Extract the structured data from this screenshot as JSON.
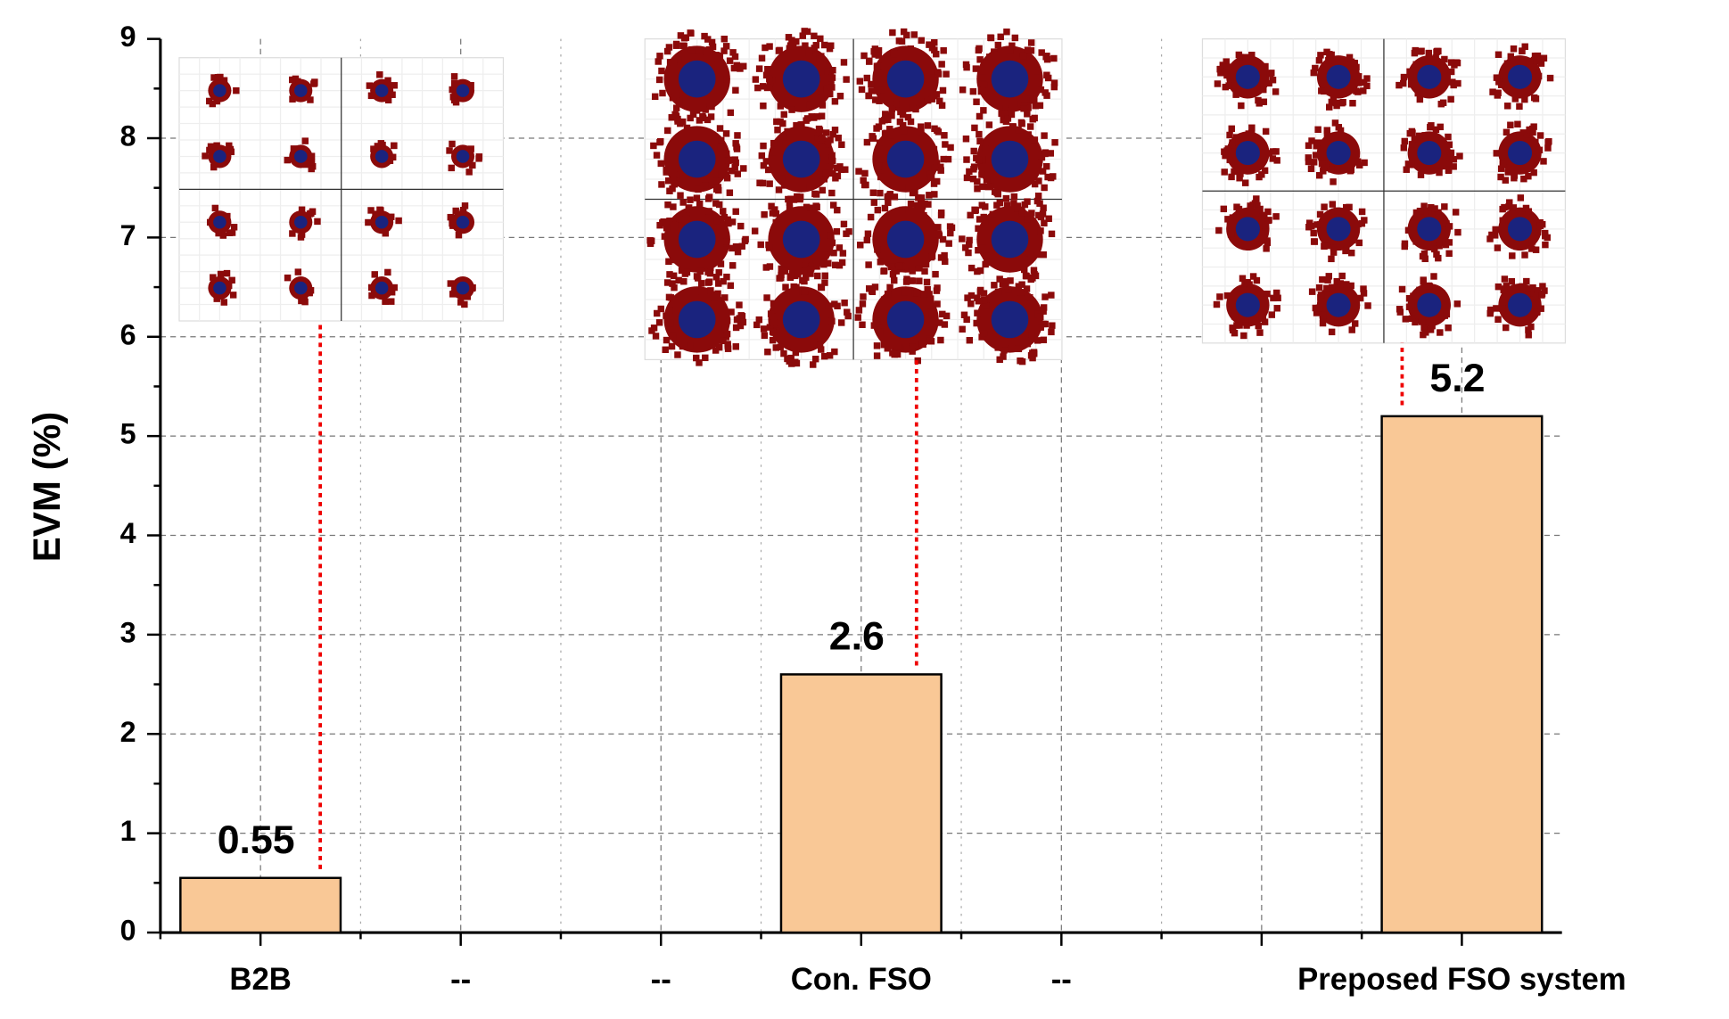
{
  "chart_data": {
    "type": "bar",
    "y_label": "EVM (%)",
    "categories": [
      "B2B",
      "--",
      "--",
      "Con. FSO",
      "--",
      null,
      "Preposed FSO system"
    ],
    "values": [
      0.55,
      null,
      null,
      2.6,
      null,
      null,
      5.2
    ],
    "value_labels": [
      "0.55",
      null,
      null,
      "2.6",
      null,
      null,
      "5.2"
    ],
    "color": "#f9c896",
    "ylim": [
      0,
      9
    ],
    "yticks": [
      0,
      1,
      2,
      3,
      4,
      5,
      6,
      7,
      8,
      9
    ],
    "grid": true
  }
}
